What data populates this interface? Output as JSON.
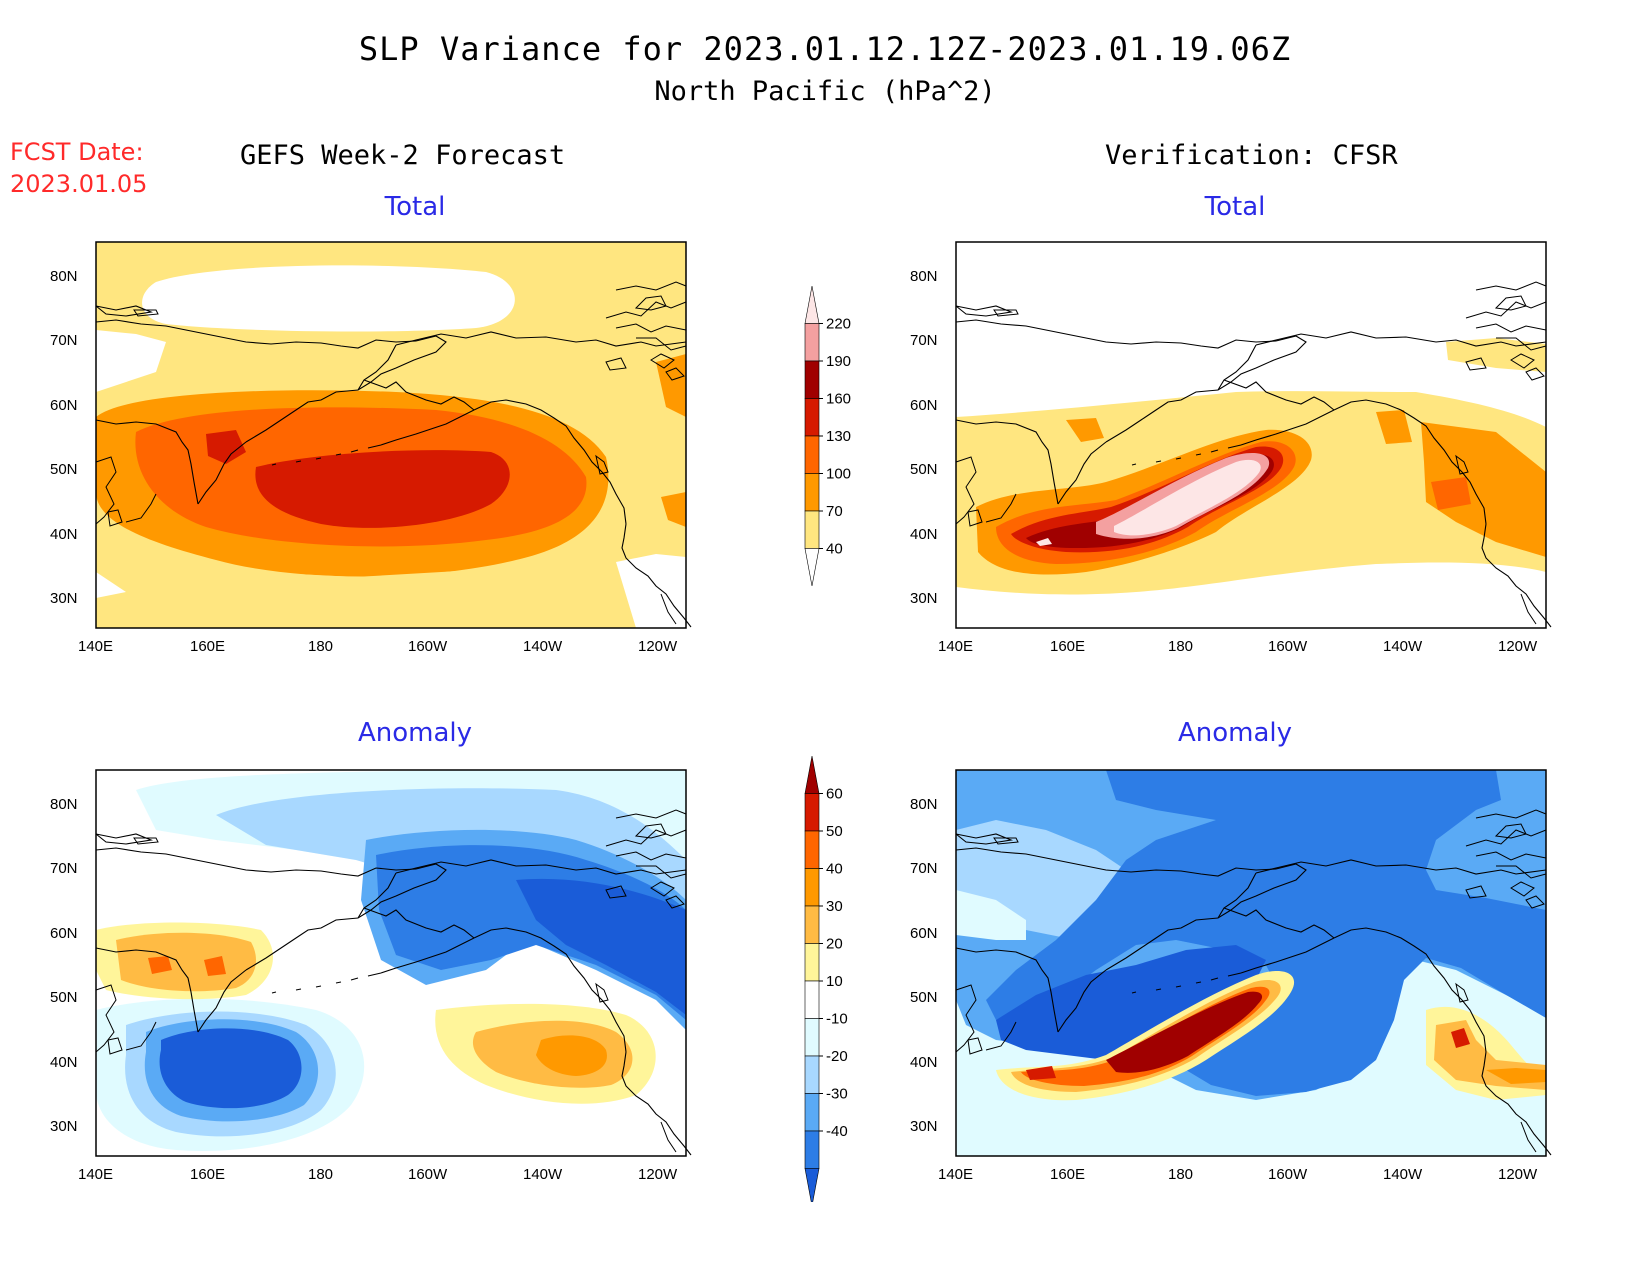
{
  "header": {
    "title": "SLP Variance for 2023.01.12.12Z-2023.01.19.06Z",
    "subtitle": "North Pacific (hPa^2)",
    "fcst_label": "FCST Date:",
    "fcst_date": "2023.01.05"
  },
  "columns": {
    "left": "GEFS Week-2 Forecast",
    "right": "Verification: CFSR"
  },
  "rows": {
    "total": "Total",
    "anomaly": "Anomaly"
  },
  "axes": {
    "lon_ticks": [
      "140E",
      "160E",
      "180",
      "160W",
      "140W",
      "120W"
    ],
    "lat_ticks": [
      "80N",
      "70N",
      "60N",
      "50N",
      "40N",
      "30N"
    ]
  },
  "colorbars": {
    "total": {
      "labels": [
        "220",
        "190",
        "160",
        "130",
        "100",
        "70",
        "40"
      ],
      "colors": [
        "#fde6e6",
        "#f4a0a0",
        "#a00000",
        "#d61a00",
        "#ff6600",
        "#ff9900",
        "#ffe680",
        "#ffffff"
      ]
    },
    "anomaly": {
      "labels": [
        "60",
        "50",
        "40",
        "30",
        "20",
        "10",
        "-10",
        "-20",
        "-30",
        "-40"
      ],
      "colors": [
        "#a00000",
        "#d61a00",
        "#ff6600",
        "#ff9900",
        "#ffbb44",
        "#fff59a",
        "#ffffff",
        "#e0fbff",
        "#a8d8ff",
        "#5aaaf5",
        "#2d7de6",
        "#1a5cd8"
      ]
    }
  }
}
